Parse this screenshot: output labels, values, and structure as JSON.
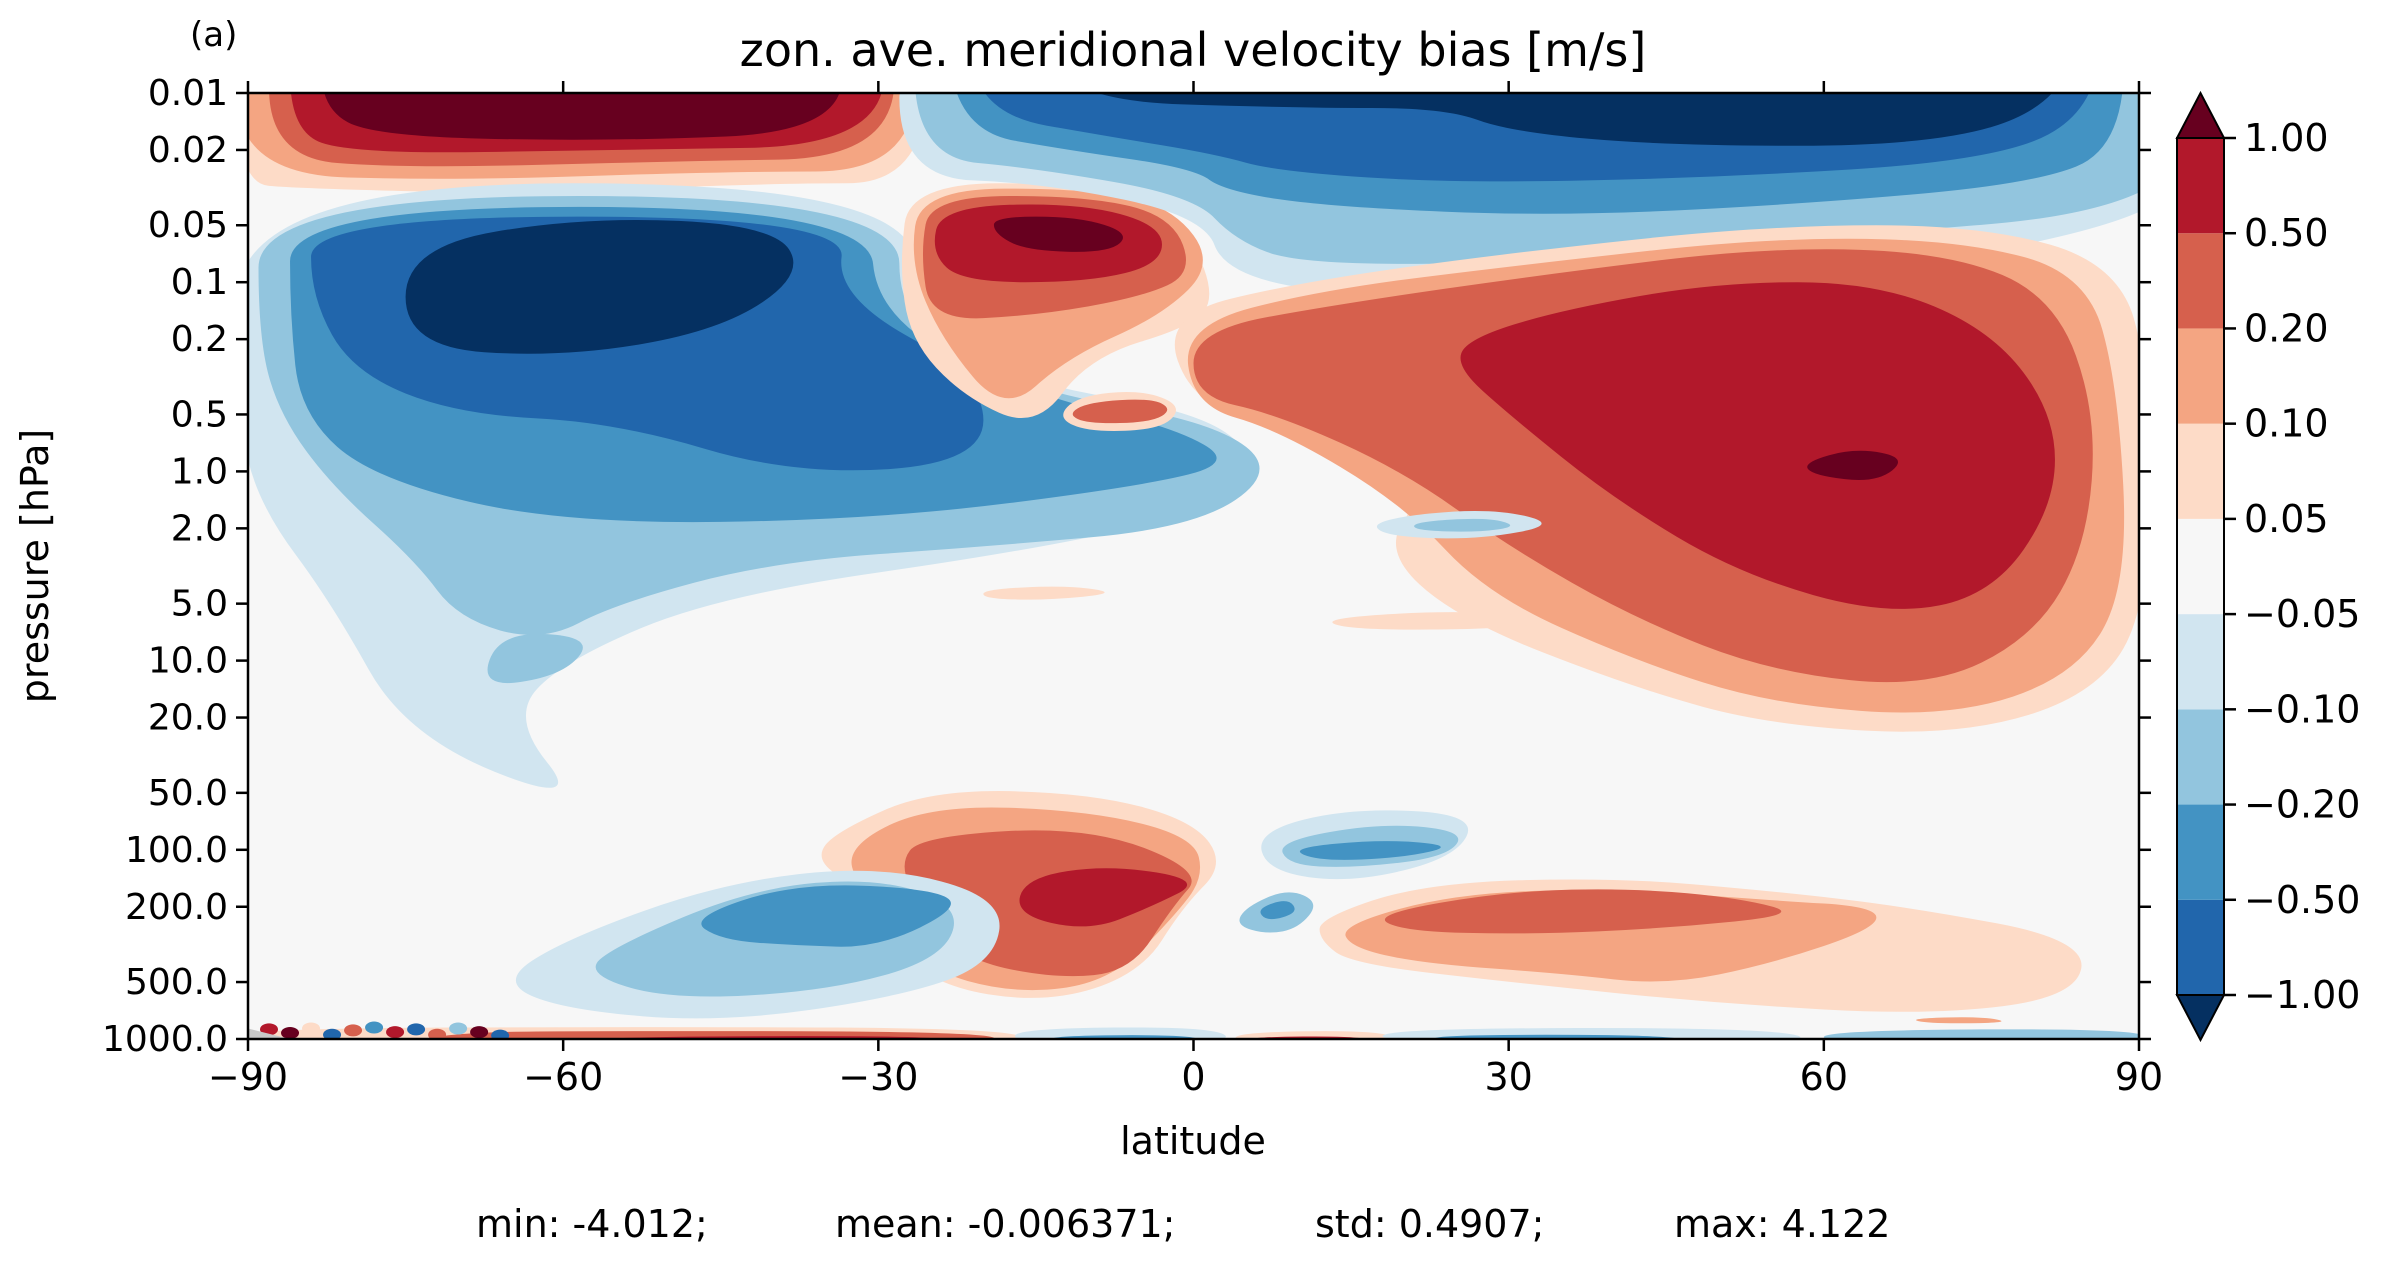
{
  "chart_data": {
    "type": "heatmap",
    "subtype": "filled-contour",
    "panel_label": "(a)",
    "title": "zon. ave. meridional velocity bias [m/s]",
    "xlabel": "latitude",
    "ylabel": "pressure [hPa]",
    "xlim": [
      -90,
      90
    ],
    "x_ticks": [
      -90,
      -60,
      -30,
      0,
      30,
      60,
      90
    ],
    "x_tick_labels": [
      "−90",
      "−60",
      "−30",
      "0",
      "30",
      "60",
      "90"
    ],
    "y_scale": "log, inverted (top = 0.01 hPa)",
    "ylim": [
      1000.0,
      0.01
    ],
    "y_ticks": [
      0.01,
      0.02,
      0.05,
      0.1,
      0.2,
      0.5,
      1.0,
      2.0,
      5.0,
      10.0,
      20.0,
      50.0,
      100.0,
      200.0,
      500.0,
      1000.0
    ],
    "y_tick_labels": [
      "0.01",
      "0.02",
      "0.05",
      "0.1",
      "0.2",
      "0.5",
      "1.0",
      "2.0",
      "5.0",
      "10.0",
      "20.0",
      "50.0",
      "100.0",
      "200.0",
      "500.0",
      "1000.0"
    ],
    "colorbar": {
      "levels": [
        -1.0,
        -0.5,
        -0.2,
        -0.1,
        -0.05,
        0.05,
        0.1,
        0.2,
        0.5,
        1.0
      ],
      "tick_labels": [
        "−1.00",
        "−0.50",
        "−0.20",
        "−0.10",
        "−0.05",
        "0.05",
        "0.10",
        "0.20",
        "0.50",
        "1.00"
      ],
      "extend": "both",
      "colors": [
        "#053061",
        "#2166ac",
        "#4393c3",
        "#92c5de",
        "#d1e5f0",
        "#f7f7f7",
        "#fddbc7",
        "#f4a582",
        "#d6604d",
        "#b2182b",
        "#67001f"
      ]
    },
    "regions": [
      {
        "name": "sh_upper_positive_cell",
        "x": [
          -85,
          -27
        ],
        "y_range_hPa": [
          0.01,
          0.022
        ],
        "peak_bin": "> 1.00"
      },
      {
        "name": "sh_mesosphere_negative_cell",
        "x": [
          -88,
          -28
        ],
        "y_range_hPa": [
          0.03,
          2.0
        ],
        "peak_bin": "< -1.00",
        "core_x": [
          -75,
          -40
        ],
        "core_y_hPa": [
          0.05,
          0.25
        ]
      },
      {
        "name": "tropical_positive_cell",
        "x": [
          -28,
          2
        ],
        "y_range_hPa": [
          0.03,
          0.2
        ],
        "peak_bin": "> 1.00",
        "core_x": [
          -17,
          -8
        ],
        "core_y_hPa": [
          0.04,
          0.07
        ]
      },
      {
        "name": "nh_upper_negative_cell",
        "x": [
          -28,
          88
        ],
        "y_range_hPa": [
          0.01,
          0.06
        ],
        "peak_bin": "< -1.00",
        "core_x": [
          23,
          80
        ],
        "core_y_hPa": [
          0.01,
          0.025
        ]
      },
      {
        "name": "nh_mesosphere_positive_cell",
        "x": [
          -3,
          88
        ],
        "y_range_hPa": [
          0.05,
          20.0
        ],
        "peak_bin": "> 1.00",
        "core_x": [
          58,
          68
        ],
        "core_y_hPa": [
          0.8,
          1.1
        ]
      },
      {
        "name": "sh_stratosphere_weak_negative",
        "x": [
          -88,
          3
        ],
        "y_range_hPa": [
          0.5,
          50.0
        ],
        "peak_bin": "-0.20 to -0.10"
      },
      {
        "name": "tropical_troposphere_positive",
        "x": [
          -34,
          2
        ],
        "y_range_hPa": [
          50.0,
          700.0
        ],
        "peak_bin": "0.50 to 1.00"
      },
      {
        "name": "sh_troposphere_negative",
        "x": [
          -58,
          -18
        ],
        "y_range_hPa": [
          70.0,
          900.0
        ],
        "peak_bin": "-0.50 to -0.20"
      },
      {
        "name": "nh_tropics_negative",
        "x": [
          4,
          27
        ],
        "y_range_hPa": [
          70.0,
          160.0
        ],
        "peak_bin": "-0.50 to -0.20"
      },
      {
        "name": "nh_troposphere_positive",
        "x": [
          12,
          85
        ],
        "y_range_hPa": [
          100.0,
          800.0
        ],
        "peak_bin": "0.20 to 0.50"
      }
    ]
  },
  "stats": {
    "min": "min: -4.012;",
    "mean": "mean: -0.006371;",
    "std": "std: 0.4907;",
    "max": "max: 4.122"
  }
}
